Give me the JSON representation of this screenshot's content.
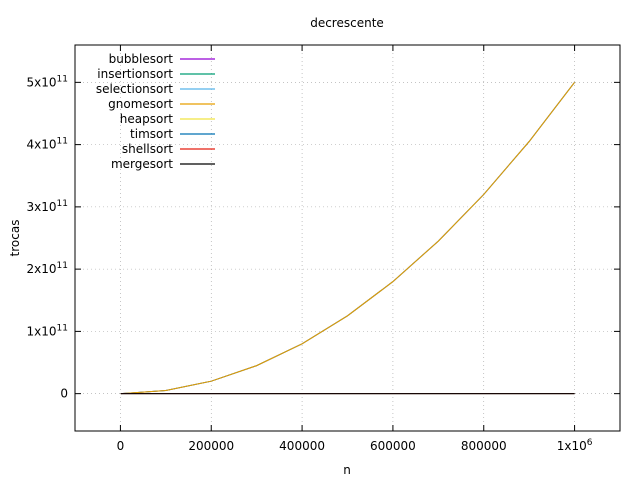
{
  "chart_data": {
    "type": "line",
    "title": "decrescente",
    "xlabel": "n",
    "ylabel": "trocas",
    "xlim": [
      -100000,
      1100000
    ],
    "ylim": [
      -60000000000,
      560000000000
    ],
    "grid": true,
    "legend_placement": "top-left",
    "x_ticks": [
      {
        "value": 0,
        "label": "0"
      },
      {
        "value": 200000,
        "label": "200000"
      },
      {
        "value": 400000,
        "label": "400000"
      },
      {
        "value": 600000,
        "label": "600000"
      },
      {
        "value": 800000,
        "label": "800000"
      },
      {
        "value": 1000000,
        "label": "1x10",
        "sup": "6"
      }
    ],
    "y_ticks": [
      {
        "value": 0,
        "label": "0"
      },
      {
        "value": 100000000000,
        "label": "1x10",
        "sup": "11"
      },
      {
        "value": 200000000000,
        "label": "2x10",
        "sup": "11"
      },
      {
        "value": 300000000000,
        "label": "3x10",
        "sup": "11"
      },
      {
        "value": 400000000000,
        "label": "4x10",
        "sup": "11"
      },
      {
        "value": 500000000000,
        "label": "5x10",
        "sup": "11"
      }
    ],
    "x": [
      1000,
      100000,
      200000,
      300000,
      400000,
      500000,
      600000,
      700000,
      800000,
      900000,
      1000000
    ],
    "series": [
      {
        "name": "bubblesort",
        "color": "#9400d3",
        "values": [
          500000,
          5000000000,
          20000000000,
          45000000000,
          80000000000,
          125000000000,
          180000000000,
          245000000000,
          320000000000,
          405000000000,
          500000000000
        ]
      },
      {
        "name": "insertionsort",
        "color": "#009e73",
        "values": [
          500000,
          5000000000,
          20000000000,
          45000000000,
          80000000000,
          125000000000,
          180000000000,
          245000000000,
          320000000000,
          405000000000,
          500000000000
        ]
      },
      {
        "name": "selectionsort",
        "color": "#56b4e9",
        "values": [
          500,
          50000,
          100000,
          150000,
          200000,
          250000,
          300000,
          350000,
          400000,
          450000,
          500000
        ]
      },
      {
        "name": "gnomesort",
        "color": "#e69f00",
        "values": [
          500000,
          5000000000,
          20000000000,
          45000000000,
          80000000000,
          125000000000,
          180000000000,
          245000000000,
          320000000000,
          405000000000,
          500000000000
        ]
      },
      {
        "name": "heapsort",
        "color": "#f0e442",
        "values": [
          9000,
          1600000,
          3400000,
          5300000,
          7200000,
          9100000,
          11000000,
          13000000,
          14900000,
          16800000,
          18800000
        ]
      },
      {
        "name": "timsort",
        "color": "#0072b2",
        "values": [
          1000,
          100000,
          200000,
          300000,
          400000,
          500000,
          600000,
          700000,
          800000,
          900000,
          1000000
        ]
      },
      {
        "name": "shellsort",
        "color": "#e51e10",
        "values": [
          4000,
          600000,
          1300000,
          2000000,
          2700000,
          3400000,
          4100000,
          4800000,
          5500000,
          6200000,
          6900000
        ]
      },
      {
        "name": "mergesort",
        "color": "#000000",
        "values": [
          5000,
          850000,
          1800000,
          2800000,
          3800000,
          4800000,
          5900000,
          6900000,
          7900000,
          9000000,
          10000000
        ]
      }
    ]
  }
}
